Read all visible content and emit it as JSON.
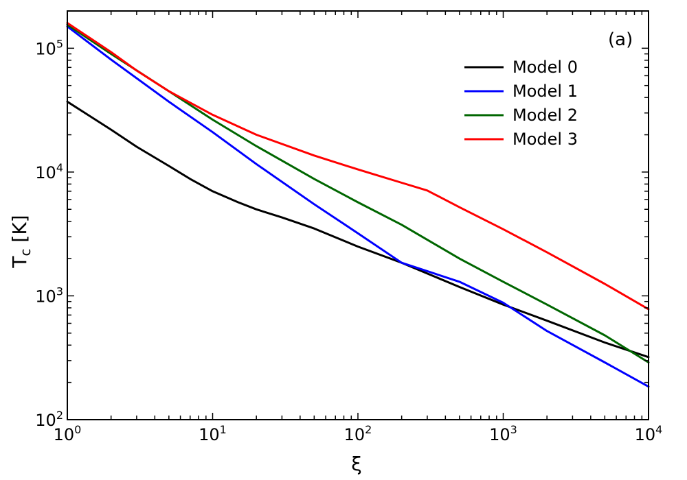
{
  "chart_data": {
    "type": "line",
    "panel_label": "(a)",
    "xlabel": "ξ",
    "ylabel": {
      "main": "T",
      "sub": "c",
      "units": " [K]"
    },
    "xscale": "log",
    "yscale": "log",
    "xlim": [
      1,
      10000
    ],
    "ylim": [
      100,
      200000
    ],
    "x_ticks": [
      {
        "base": "10",
        "exp": "0",
        "value": 1
      },
      {
        "base": "10",
        "exp": "1",
        "value": 10
      },
      {
        "base": "10",
        "exp": "2",
        "value": 100
      },
      {
        "base": "10",
        "exp": "3",
        "value": 1000
      },
      {
        "base": "10",
        "exp": "4",
        "value": 10000
      }
    ],
    "y_ticks": [
      {
        "base": "10",
        "exp": "2",
        "value": 100
      },
      {
        "base": "10",
        "exp": "3",
        "value": 1000
      },
      {
        "base": "10",
        "exp": "4",
        "value": 10000
      },
      {
        "base": "10",
        "exp": "5",
        "value": 100000
      }
    ],
    "legend_position": "top-right",
    "series": [
      {
        "name": "Model 0",
        "color": "#000000",
        "x": [
          1,
          2,
          3,
          5,
          7,
          10,
          15,
          20,
          30,
          50,
          100,
          200,
          500,
          1000,
          2000,
          5000,
          10000
        ],
        "y": [
          37000,
          22000,
          16000,
          11200,
          8800,
          7000,
          5700,
          5000,
          4300,
          3500,
          2500,
          1850,
          1180,
          850,
          630,
          420,
          320
        ]
      },
      {
        "name": "Model 1",
        "color": "#0000ff",
        "x": [
          1,
          2,
          5,
          10,
          20,
          50,
          100,
          200,
          500,
          1000,
          2000,
          5000,
          10000
        ],
        "y": [
          150000,
          81000,
          37000,
          21000,
          11600,
          5500,
          3200,
          1850,
          1300,
          880,
          520,
          290,
          185
        ]
      },
      {
        "name": "Model 2",
        "color": "#006600",
        "x": [
          1,
          2,
          5,
          10,
          20,
          50,
          100,
          200,
          500,
          1000,
          2000,
          5000,
          10000
        ],
        "y": [
          155000,
          90000,
          45000,
          26500,
          16200,
          8800,
          5700,
          3750,
          2000,
          1300,
          850,
          480,
          290
        ]
      },
      {
        "name": "Model 3",
        "color": "#ff0000",
        "x": [
          1,
          2,
          3,
          5,
          10,
          20,
          50,
          100,
          200,
          300,
          500,
          1000,
          2000,
          5000,
          10000
        ],
        "y": [
          160000,
          93000,
          66000,
          45000,
          29000,
          20000,
          13600,
          10500,
          8200,
          7100,
          5200,
          3450,
          2250,
          1250,
          780
        ]
      }
    ]
  }
}
